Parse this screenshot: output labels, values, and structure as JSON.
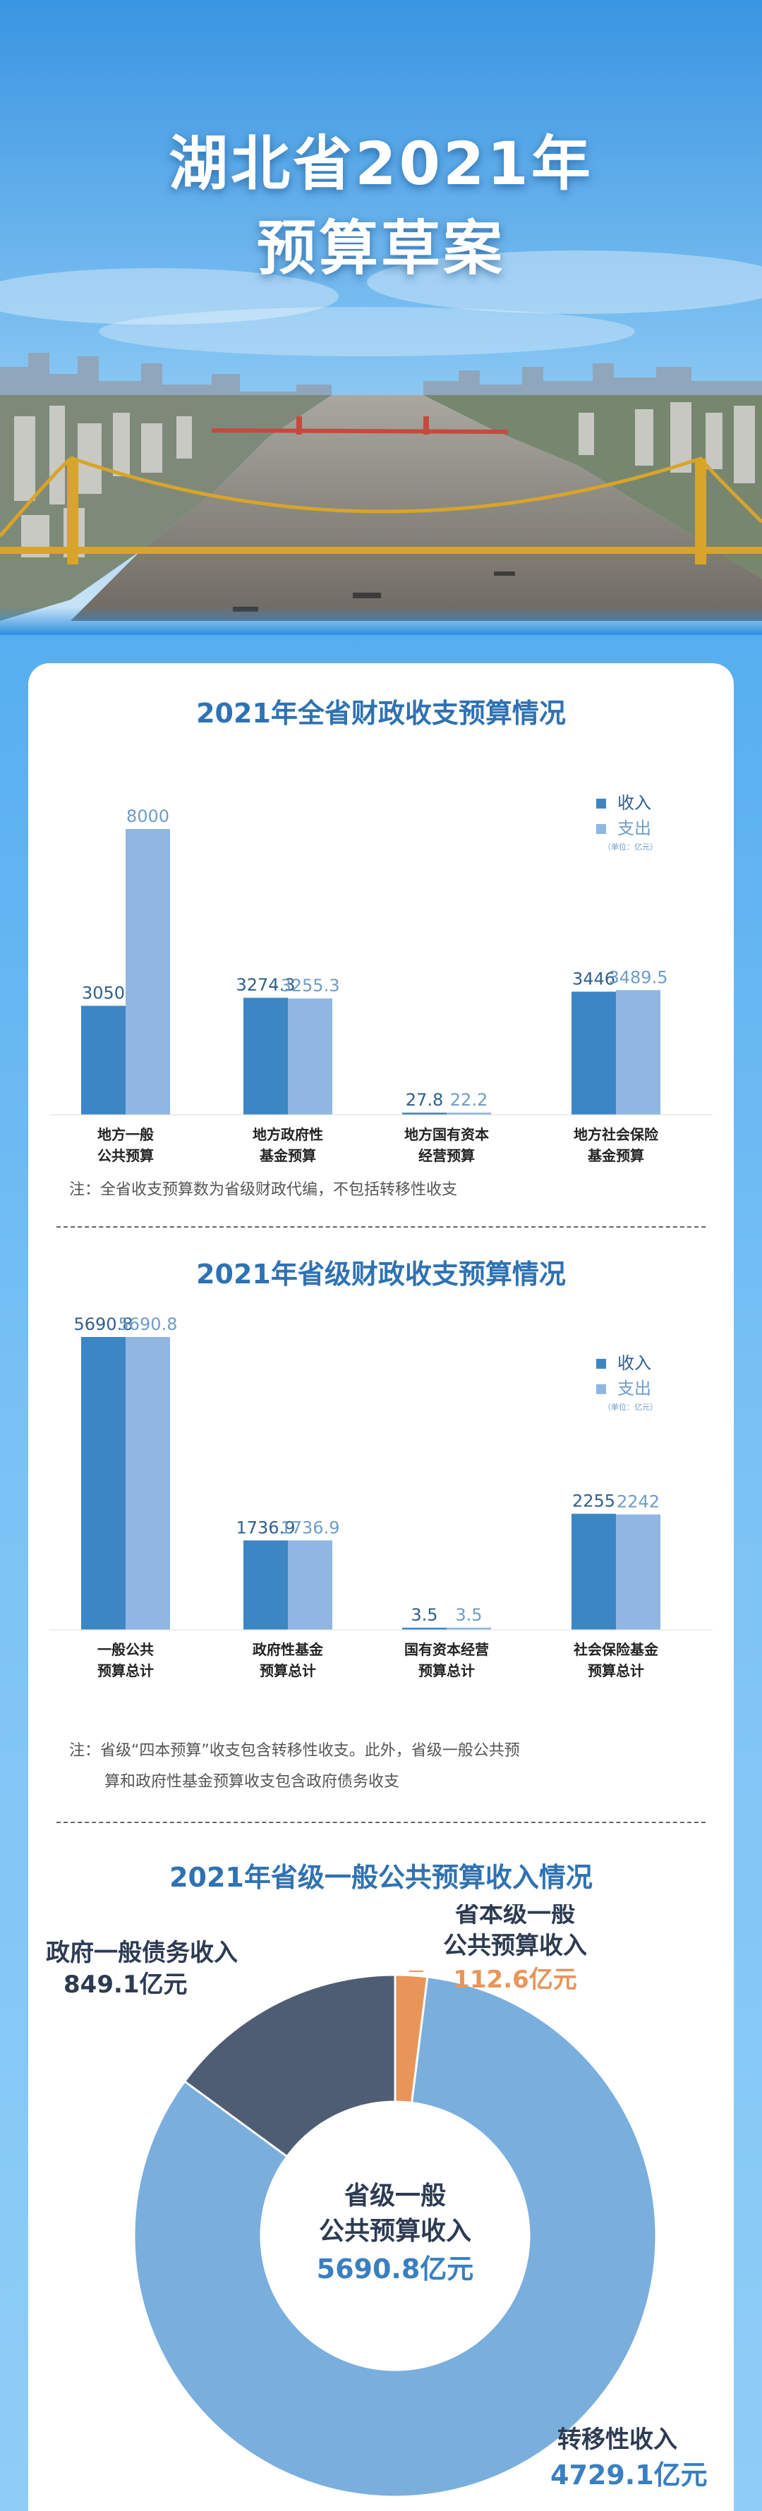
{
  "header": {
    "title_line1": "湖北省2021年",
    "title_line2": "预算草案"
  },
  "colors": {
    "income": "#3d86c4",
    "expense": "#8fb7e2",
    "title_blue": "#2f72b3",
    "accent_orange": "#e8955a",
    "donut_main": "#7aaedd",
    "donut_debt": "#4f5d74"
  },
  "sections": {
    "chart1_title": "2021年全省财政收支预算情况",
    "chart1_note": "注：全省收支预算数为省级财政代编，不包括转移性收支",
    "chart2_title": "2021年省级财政收支预算情况",
    "chart2_note_line1": "注：省级“四本预算”收支包含转移性收支。此外，省级一般公共预",
    "chart2_note_line2": "算和政府性基金预算收支包含政府债务收支",
    "chart3_title": "2021年省级一般公共预算收入情况"
  },
  "chart_data": [
    {
      "type": "bar",
      "title": "2021年全省财政收支预算情况",
      "categories": [
        [
          "地方一般",
          "公共预算"
        ],
        [
          "地方政府性",
          "基金预算"
        ],
        [
          "地方国有资本",
          "经营预算"
        ],
        [
          "地方社会保险",
          "基金预算"
        ]
      ],
      "series": [
        {
          "name": "收入",
          "values": [
            3050,
            3274.3,
            27.8,
            3446
          ],
          "labels": [
            "3050",
            "3274.3",
            "27.8",
            "3446"
          ]
        },
        {
          "name": "支出",
          "values": [
            8000,
            3255.3,
            22.2,
            3489.5
          ],
          "labels": [
            "8000",
            "3255.3",
            "22.2",
            "3489.5"
          ]
        }
      ],
      "unit_note": "（单位：亿元）",
      "ylim": [
        0,
        8000
      ],
      "legend": "top-right"
    },
    {
      "type": "bar",
      "title": "2021年省级财政收支预算情况",
      "categories": [
        [
          "一般公共",
          "预算总计"
        ],
        [
          "政府性基金",
          "预算总计"
        ],
        [
          "国有资本经营",
          "预算总计"
        ],
        [
          "社会保险基金",
          "预算总计"
        ]
      ],
      "series": [
        {
          "name": "收入",
          "values": [
            5690.8,
            1736.9,
            3.5,
            2255
          ],
          "labels": [
            "5690.8",
            "1736.9",
            "3.5",
            "2255"
          ]
        },
        {
          "name": "支出",
          "values": [
            5690.8,
            1736.9,
            3.5,
            2242
          ],
          "labels": [
            "5690.8",
            "1736.9",
            "3.5",
            "2242"
          ]
        }
      ],
      "unit_note": "（单位：亿元）",
      "ylim": [
        0,
        5690.8
      ],
      "legend": "top-right"
    },
    {
      "type": "pie",
      "title": "2021年省级一般公共预算收入情况",
      "center_label": [
        "省级一般",
        "公共预算收入"
      ],
      "center_value": "5690.8亿元",
      "slices": [
        {
          "name_lines": [
            "省本级一般",
            "公共预算收入"
          ],
          "value": 112.6,
          "value_label": "112.6亿元",
          "color": "#e8955a"
        },
        {
          "name_lines": [
            "转移性收入"
          ],
          "value": 4729.1,
          "value_label": "4729.1亿元",
          "color": "#7aaedd"
        },
        {
          "name_lines": [
            "政府一般债务收入"
          ],
          "value": 849.1,
          "value_label": "849.1亿元",
          "color": "#4f5d74"
        }
      ]
    }
  ]
}
